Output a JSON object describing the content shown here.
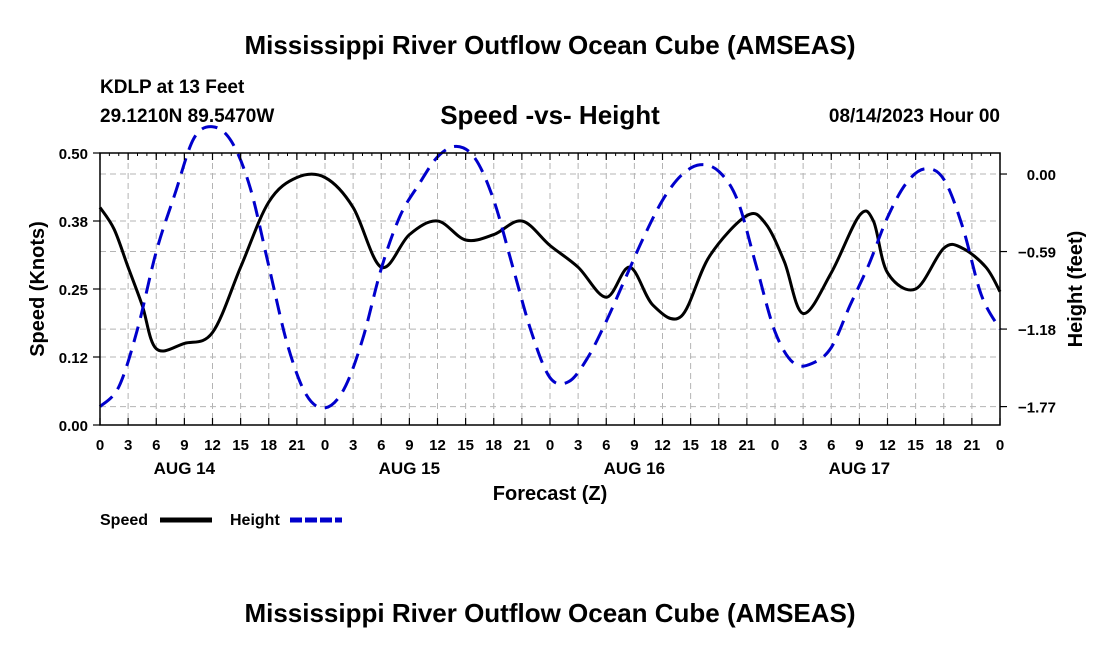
{
  "header": {
    "title": "Mississippi River Outflow Ocean Cube (AMSEAS)",
    "station": "KDLP at 13 Feet",
    "coordinates": "29.1210N  89.5470W",
    "subtitle": "Speed -vs- Height",
    "datetime": "08/14/2023 Hour 00"
  },
  "footer": {
    "title": "Mississippi River Outflow Ocean Cube (AMSEAS)"
  },
  "chart_data": {
    "type": "line",
    "xlabel": "Forecast (Z)",
    "ylabel_left": "Speed (Knots)",
    "ylabel_right": "Height (feet)",
    "x_range_hours": [
      0,
      96
    ],
    "x_tick_labels": [
      "0",
      "3",
      "6",
      "9",
      "12",
      "15",
      "18",
      "21",
      "0",
      "3",
      "6",
      "9",
      "12",
      "15",
      "18",
      "21",
      "0",
      "3",
      "6",
      "9",
      "12",
      "15",
      "18",
      "21",
      "0",
      "3",
      "6",
      "9",
      "12",
      "15",
      "18",
      "21",
      "0"
    ],
    "day_labels": [
      {
        "label": "AUG 14",
        "hour": 9
      },
      {
        "label": "AUG 15",
        "hour": 33
      },
      {
        "label": "AUG 16",
        "hour": 57
      },
      {
        "label": "AUG 17",
        "hour": 81
      }
    ],
    "left_axis": {
      "min": 0,
      "max": 0.5,
      "ticks": [
        0.0,
        0.125,
        0.25,
        0.375,
        0.5
      ],
      "tick_labels": [
        "0.00",
        "0.12",
        "0.25",
        "0.38",
        "0.50"
      ]
    },
    "right_axis": {
      "min": -1.91,
      "max": 0.16,
      "ticks": [
        -1.77,
        -1.18,
        -0.59,
        0.0
      ],
      "tick_labels": [
        "−1.77",
        "−1.18",
        "−0.59",
        "0.00"
      ]
    },
    "legend": [
      {
        "label": "Speed",
        "color": "#000000",
        "style": "solid"
      },
      {
        "label": "Height",
        "color": "#0000cc",
        "style": "dashed"
      }
    ],
    "series": [
      {
        "name": "Speed",
        "axis": "left",
        "color": "#000000",
        "points": [
          [
            0,
            0.4
          ],
          [
            1.5,
            0.36
          ],
          [
            3,
            0.29
          ],
          [
            4.5,
            0.22
          ],
          [
            6,
            0.14
          ],
          [
            9,
            0.15
          ],
          [
            12,
            0.17
          ],
          [
            15,
            0.29
          ],
          [
            18,
            0.41
          ],
          [
            21,
            0.455
          ],
          [
            24,
            0.455
          ],
          [
            27,
            0.4
          ],
          [
            30,
            0.29
          ],
          [
            33,
            0.35
          ],
          [
            36,
            0.375
          ],
          [
            39,
            0.34
          ],
          [
            42,
            0.35
          ],
          [
            45,
            0.375
          ],
          [
            48,
            0.33
          ],
          [
            51,
            0.29
          ],
          [
            54,
            0.235
          ],
          [
            56.5,
            0.29
          ],
          [
            59,
            0.22
          ],
          [
            62,
            0.2
          ],
          [
            65,
            0.31
          ],
          [
            69,
            0.385
          ],
          [
            71,
            0.37
          ],
          [
            73,
            0.3
          ],
          [
            75,
            0.205
          ],
          [
            78,
            0.28
          ],
          [
            81,
            0.385
          ],
          [
            82.5,
            0.375
          ],
          [
            84,
            0.28
          ],
          [
            87,
            0.25
          ],
          [
            90,
            0.325
          ],
          [
            92,
            0.325
          ],
          [
            94.5,
            0.29
          ],
          [
            96,
            0.245
          ]
        ]
      },
      {
        "name": "Height",
        "axis": "right",
        "color": "#0000cc",
        "points": [
          [
            0,
            -1.77
          ],
          [
            2,
            -1.62
          ],
          [
            4,
            -1.18
          ],
          [
            6,
            -0.59
          ],
          [
            8,
            -0.15
          ],
          [
            10,
            0.27
          ],
          [
            12,
            0.36
          ],
          [
            14,
            0.25
          ],
          [
            16,
            -0.1
          ],
          [
            18,
            -0.7
          ],
          [
            20,
            -1.3
          ],
          [
            22,
            -1.68
          ],
          [
            24,
            -1.78
          ],
          [
            26,
            -1.64
          ],
          [
            28,
            -1.26
          ],
          [
            30,
            -0.72
          ],
          [
            32,
            -0.32
          ],
          [
            34,
            -0.08
          ],
          [
            36,
            0.13
          ],
          [
            38,
            0.21
          ],
          [
            40,
            0.12
          ],
          [
            42,
            -0.2
          ],
          [
            44,
            -0.7
          ],
          [
            46,
            -1.2
          ],
          [
            48,
            -1.55
          ],
          [
            50,
            -1.58
          ],
          [
            52,
            -1.4
          ],
          [
            54,
            -1.12
          ],
          [
            56,
            -0.8
          ],
          [
            58,
            -0.48
          ],
          [
            60,
            -0.2
          ],
          [
            62,
            -0.01
          ],
          [
            64,
            0.07
          ],
          [
            66,
            0.02
          ],
          [
            68,
            -0.2
          ],
          [
            70,
            -0.7
          ],
          [
            72,
            -1.2
          ],
          [
            74,
            -1.44
          ],
          [
            76,
            -1.44
          ],
          [
            78,
            -1.32
          ],
          [
            80,
            -1.0
          ],
          [
            82,
            -0.69
          ],
          [
            84,
            -0.33
          ],
          [
            86,
            -0.07
          ],
          [
            88,
            0.04
          ],
          [
            90,
            -0.04
          ],
          [
            92,
            -0.4
          ],
          [
            94,
            -0.92
          ],
          [
            96,
            -1.18
          ]
        ]
      }
    ]
  }
}
